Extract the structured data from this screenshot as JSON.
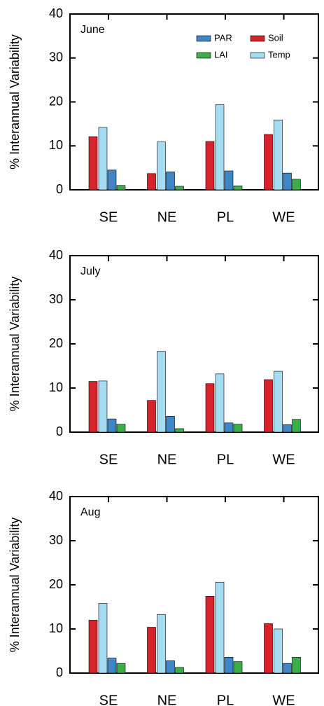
{
  "chart_data": [
    {
      "type": "bar",
      "title": "June",
      "y_label": "% Interannual Variability",
      "categories": [
        "SE",
        "NE",
        "PL",
        "WE"
      ],
      "series": [
        {
          "name": "Soil",
          "color": "#d7232b",
          "values": [
            12.1,
            3.7,
            11.0,
            12.6
          ]
        },
        {
          "name": "Temp",
          "color": "#a6dcf2",
          "values": [
            14.2,
            10.9,
            19.4,
            15.9
          ]
        },
        {
          "name": "PAR",
          "color": "#3f86c6",
          "values": [
            4.5,
            4.1,
            4.3,
            3.8
          ]
        },
        {
          "name": "LAI",
          "color": "#3cae49",
          "values": [
            1.0,
            0.8,
            0.9,
            2.4
          ]
        }
      ],
      "ylim": [
        0,
        40
      ],
      "yticks": [
        0,
        10,
        20,
        30,
        40
      ],
      "legend": true
    },
    {
      "type": "bar",
      "title": "July",
      "y_label": "% Interannual Variability",
      "categories": [
        "SE",
        "NE",
        "PL",
        "WE"
      ],
      "series": [
        {
          "color": "#d7232b",
          "values": [
            11.5,
            7.2,
            11.0,
            11.9
          ]
        },
        {
          "color": "#a6dcf2",
          "values": [
            11.6,
            18.3,
            13.2,
            13.8
          ]
        },
        {
          "color": "#3f86c6",
          "values": [
            3.0,
            3.6,
            2.1,
            1.7
          ]
        },
        {
          "color": "#3cae49",
          "values": [
            1.8,
            0.8,
            1.8,
            2.9
          ]
        }
      ],
      "ylim": [
        0,
        40
      ],
      "yticks": [
        0,
        10,
        20,
        30,
        40
      ],
      "legend": false
    },
    {
      "type": "bar",
      "title": "Aug",
      "y_label": "% Interannual Variability",
      "categories": [
        "SE",
        "NE",
        "PL",
        "WE"
      ],
      "series": [
        {
          "color": "#d7232b",
          "values": [
            12.0,
            10.4,
            17.4,
            11.2
          ]
        },
        {
          "color": "#a6dcf2",
          "values": [
            15.8,
            13.3,
            20.6,
            10.0
          ]
        },
        {
          "color": "#3f86c6",
          "values": [
            3.4,
            2.8,
            3.6,
            2.2
          ]
        },
        {
          "color": "#3cae49",
          "values": [
            2.2,
            1.3,
            2.6,
            3.6
          ]
        }
      ],
      "ylim": [
        0,
        40
      ],
      "yticks": [
        0,
        10,
        20,
        30,
        40
      ],
      "legend": false
    }
  ]
}
